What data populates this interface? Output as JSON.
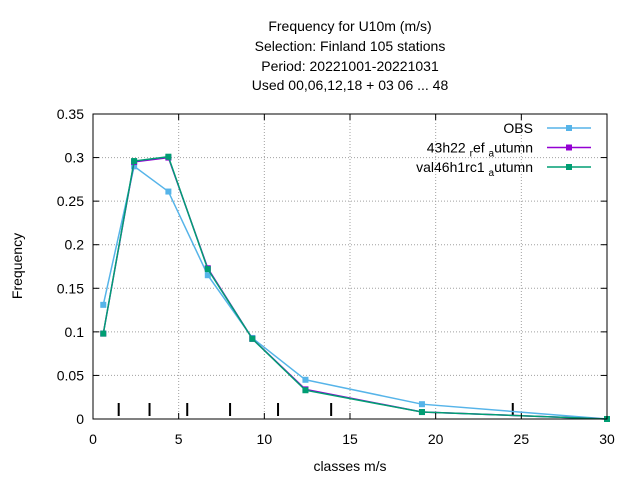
{
  "chart_data": {
    "type": "line",
    "title_lines": [
      "Frequency  for U10m (m/s)",
      "Selection: Finland    105 stations",
      "Period: 20221001-20221031",
      "Used  00,06,12,18  + 03 06 ... 48"
    ],
    "xlabel": "classes m/s",
    "ylabel": "Frequency",
    "xlim": [
      0,
      30
    ],
    "ylim": [
      0,
      0.35
    ],
    "x_ticks": [
      0,
      5,
      10,
      15,
      20,
      25,
      30
    ],
    "y_ticks": [
      0,
      0.05,
      0.1,
      0.15,
      0.2,
      0.25,
      0.3,
      0.35
    ],
    "x_tick_labels": [
      "0",
      "5",
      "10",
      "15",
      "20",
      "25",
      "30"
    ],
    "y_tick_labels": [
      "0",
      "0.05",
      "0.1",
      "0.15",
      "0.2",
      "0.25",
      "0.3",
      "0.35"
    ],
    "grid": true,
    "legend_position": "top-right",
    "class_boundaries": [
      1.5,
      3.3,
      5.5,
      8.0,
      10.8,
      13.9,
      24.5
    ],
    "series": [
      {
        "name": "OBS",
        "color": "#56b4e9",
        "x": [
          0.6,
          2.4,
          4.4,
          6.7,
          9.3,
          12.4,
          19.2,
          30
        ],
        "y": [
          0.131,
          0.29,
          0.261,
          0.165,
          0.093,
          0.045,
          0.017,
          0.0
        ]
      },
      {
        "name": "43h22 ref autumn",
        "legend_parts": [
          "43h22 ",
          "r",
          "ef ",
          "a",
          "utumn"
        ],
        "color": "#9400d3",
        "x": [
          0.6,
          2.4,
          4.4,
          6.7,
          9.3,
          12.4,
          19.2,
          30
        ],
        "y": [
          0.098,
          0.295,
          0.3,
          0.173,
          0.092,
          0.034,
          0.008,
          0.0
        ]
      },
      {
        "name": "val46h1rc1 autumn",
        "legend_parts": [
          "val46h1rc1 ",
          "a",
          "utumn"
        ],
        "color": "#009e73",
        "x": [
          0.6,
          2.4,
          4.4,
          6.7,
          9.3,
          12.4,
          19.2,
          30
        ],
        "y": [
          0.098,
          0.296,
          0.301,
          0.172,
          0.092,
          0.033,
          0.008,
          0.0
        ]
      }
    ]
  }
}
